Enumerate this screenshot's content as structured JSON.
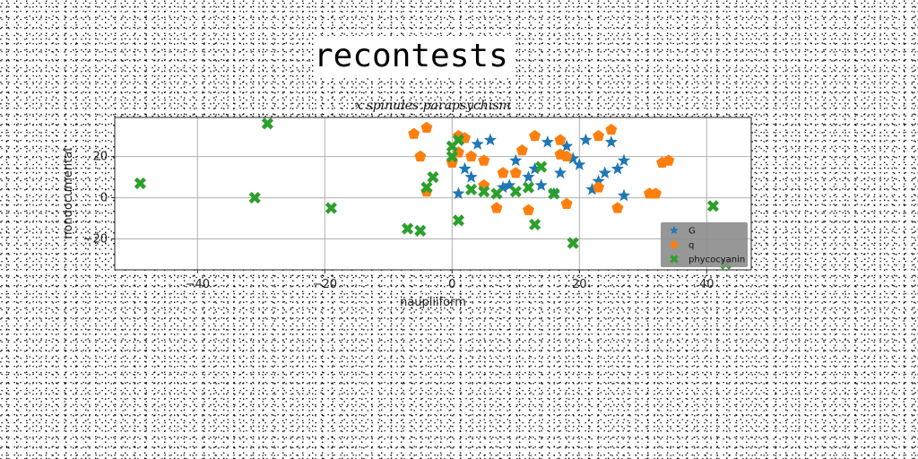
{
  "title": "recontests",
  "chart_data": {
    "type": "scatter",
    "title": "x spinules parapsychism",
    "xlabel": "naupliiform",
    "ylabel": "nondocumental",
    "xlim": [
      -53,
      47
    ],
    "ylim": [
      -35,
      39
    ],
    "xticks": [
      -40,
      -20,
      0,
      20,
      40
    ],
    "yticks": [
      -20,
      0,
      20
    ],
    "grid": true,
    "legend": "lower-right",
    "series": [
      {
        "name": "G",
        "color": "#1f77b4",
        "marker": "star",
        "points": [
          [
            1,
            2
          ],
          [
            2,
            14
          ],
          [
            3,
            10
          ],
          [
            4,
            26
          ],
          [
            6,
            28
          ],
          [
            8,
            5
          ],
          [
            9,
            6
          ],
          [
            10,
            18
          ],
          [
            12,
            10
          ],
          [
            13,
            14
          ],
          [
            14,
            6
          ],
          [
            15,
            27
          ],
          [
            16,
            2
          ],
          [
            17,
            12
          ],
          [
            18,
            25
          ],
          [
            19,
            19
          ],
          [
            20,
            16
          ],
          [
            21,
            28
          ],
          [
            22,
            4
          ],
          [
            23,
            8
          ],
          [
            24,
            12
          ],
          [
            25,
            27
          ],
          [
            26,
            14
          ],
          [
            27,
            18
          ],
          [
            27,
            1
          ]
        ]
      },
      {
        "name": "q",
        "color": "#ff7f0e",
        "marker": "pentagon",
        "points": [
          [
            -6,
            31
          ],
          [
            -5,
            20
          ],
          [
            -4,
            3
          ],
          [
            -4,
            34
          ],
          [
            0,
            17
          ],
          [
            1,
            22
          ],
          [
            1,
            30
          ],
          [
            2,
            29
          ],
          [
            3,
            20
          ],
          [
            5,
            18
          ],
          [
            5,
            6
          ],
          [
            7,
            -5
          ],
          [
            8,
            12
          ],
          [
            10,
            12
          ],
          [
            11,
            23
          ],
          [
            12,
            -6
          ],
          [
            13,
            30
          ],
          [
            17,
            28
          ],
          [
            17,
            21
          ],
          [
            18,
            -3
          ],
          [
            18,
            20
          ],
          [
            23,
            30
          ],
          [
            23,
            5
          ],
          [
            25,
            33
          ],
          [
            26,
            -5
          ],
          [
            31,
            2
          ],
          [
            32,
            2
          ],
          [
            33,
            17
          ],
          [
            34,
            18
          ]
        ]
      },
      {
        "name": "phycocyanin",
        "color": "#2ca02c",
        "marker": "x",
        "points": [
          [
            -49,
            7
          ],
          [
            -29,
            36
          ],
          [
            -31,
            0
          ],
          [
            -19,
            -5
          ],
          [
            -7,
            -15
          ],
          [
            -5,
            -16
          ],
          [
            -4,
            5
          ],
          [
            -3,
            10
          ],
          [
            0,
            20
          ],
          [
            0,
            25
          ],
          [
            1,
            -11
          ],
          [
            1,
            28
          ],
          [
            3,
            4
          ],
          [
            5,
            3
          ],
          [
            7,
            2
          ],
          [
            10,
            3
          ],
          [
            12,
            5
          ],
          [
            13,
            -13
          ],
          [
            14,
            15
          ],
          [
            16,
            2
          ],
          [
            19,
            -22
          ],
          [
            41,
            -4
          ],
          [
            43,
            -32
          ]
        ]
      }
    ]
  }
}
